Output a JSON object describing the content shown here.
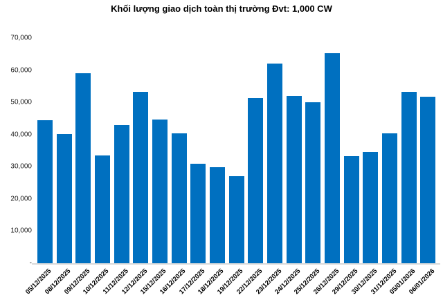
{
  "chart_data": {
    "type": "bar",
    "title": "Khối lượng giao dịch toàn thị trường Đvt: 1,000 CW",
    "categories": [
      "05/12/2025",
      "08/12/2025",
      "09/12/2025",
      "10/12/2025",
      "11/12/2025",
      "12/12/2025",
      "15/12/2025",
      "16/12/2025",
      "17/12/2025",
      "18/12/2025",
      "19/12/2025",
      "22/12/2025",
      "23/12/2025",
      "24/12/2025",
      "25/12/2025",
      "26/12/2025",
      "29/12/2025",
      "30/12/2025",
      "31/12/2025",
      "05/01/2026",
      "06/01/2026"
    ],
    "values": [
      44500,
      40100,
      59200,
      33600,
      43000,
      53300,
      44700,
      40300,
      31000,
      29900,
      27000,
      51300,
      62100,
      52000,
      50100,
      65300,
      33300,
      34500,
      40300,
      53200,
      51800
    ],
    "ylim": [
      0,
      70000
    ],
    "yticks": [
      {
        "label": "70,000",
        "value": 70000
      },
      {
        "label": "60,000",
        "value": 60000
      },
      {
        "label": "50,000",
        "value": 50000
      },
      {
        "label": "40,000",
        "value": 40000
      },
      {
        "label": "30,000",
        "value": 30000
      },
      {
        "label": "20,000",
        "value": 20000
      },
      {
        "label": "10,000",
        "value": 10000
      },
      {
        "label": "-",
        "value": 0
      }
    ],
    "xlabel": "",
    "ylabel": "",
    "grid": false,
    "legend_position": "none",
    "bar_color": "#0070C0",
    "axis_line_color": "#D9D9D9",
    "text_color": "#1a1a1a",
    "background_color": "#FFFFFF"
  }
}
